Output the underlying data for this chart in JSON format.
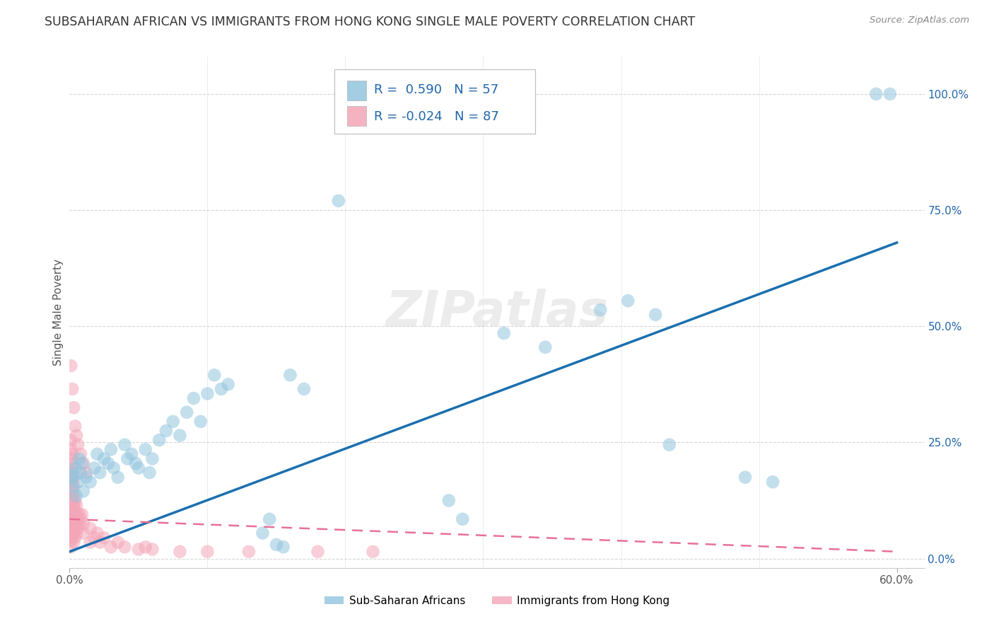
{
  "title": "SUBSAHARAN AFRICAN VS IMMIGRANTS FROM HONG KONG SINGLE MALE POVERTY CORRELATION CHART",
  "source": "Source: ZipAtlas.com",
  "ylabel": "Single Male Poverty",
  "watermark": "ZIPatlas",
  "blue_color": "#92c5de",
  "pink_color": "#f4a6b8",
  "blue_line_color": "#1a6faf",
  "pink_line_color": "#e87099",
  "blue_scatter": [
    [
      0.001,
      0.175
    ],
    [
      0.002,
      0.155
    ],
    [
      0.003,
      0.18
    ],
    [
      0.004,
      0.195
    ],
    [
      0.005,
      0.135
    ],
    [
      0.006,
      0.165
    ],
    [
      0.007,
      0.215
    ],
    [
      0.008,
      0.185
    ],
    [
      0.009,
      0.205
    ],
    [
      0.01,
      0.145
    ],
    [
      0.012,
      0.175
    ],
    [
      0.015,
      0.165
    ],
    [
      0.018,
      0.195
    ],
    [
      0.02,
      0.225
    ],
    [
      0.022,
      0.185
    ],
    [
      0.025,
      0.215
    ],
    [
      0.028,
      0.205
    ],
    [
      0.03,
      0.235
    ],
    [
      0.032,
      0.195
    ],
    [
      0.035,
      0.175
    ],
    [
      0.04,
      0.245
    ],
    [
      0.042,
      0.215
    ],
    [
      0.045,
      0.225
    ],
    [
      0.048,
      0.205
    ],
    [
      0.05,
      0.195
    ],
    [
      0.055,
      0.235
    ],
    [
      0.058,
      0.185
    ],
    [
      0.06,
      0.215
    ],
    [
      0.065,
      0.255
    ],
    [
      0.07,
      0.275
    ],
    [
      0.075,
      0.295
    ],
    [
      0.08,
      0.265
    ],
    [
      0.085,
      0.315
    ],
    [
      0.09,
      0.345
    ],
    [
      0.095,
      0.295
    ],
    [
      0.1,
      0.355
    ],
    [
      0.105,
      0.395
    ],
    [
      0.11,
      0.365
    ],
    [
      0.115,
      0.375
    ],
    [
      0.14,
      0.055
    ],
    [
      0.145,
      0.085
    ],
    [
      0.15,
      0.03
    ],
    [
      0.155,
      0.025
    ],
    [
      0.16,
      0.395
    ],
    [
      0.17,
      0.365
    ],
    [
      0.195,
      0.77
    ],
    [
      0.275,
      0.125
    ],
    [
      0.285,
      0.085
    ],
    [
      0.315,
      0.485
    ],
    [
      0.345,
      0.455
    ],
    [
      0.385,
      0.535
    ],
    [
      0.405,
      0.555
    ],
    [
      0.425,
      0.525
    ],
    [
      0.435,
      0.245
    ],
    [
      0.49,
      0.175
    ],
    [
      0.51,
      0.165
    ],
    [
      0.585,
      1.0
    ],
    [
      0.595,
      1.0
    ]
  ],
  "pink_scatter": [
    [
      0.001,
      0.155
    ],
    [
      0.001,
      0.175
    ],
    [
      0.001,
      0.195
    ],
    [
      0.001,
      0.215
    ],
    [
      0.001,
      0.135
    ],
    [
      0.001,
      0.115
    ],
    [
      0.001,
      0.095
    ],
    [
      0.001,
      0.075
    ],
    [
      0.001,
      0.055
    ],
    [
      0.001,
      0.04
    ],
    [
      0.001,
      0.025
    ],
    [
      0.001,
      0.235
    ],
    [
      0.001,
      0.255
    ],
    [
      0.002,
      0.045
    ],
    [
      0.002,
      0.065
    ],
    [
      0.002,
      0.085
    ],
    [
      0.002,
      0.105
    ],
    [
      0.002,
      0.125
    ],
    [
      0.002,
      0.145
    ],
    [
      0.002,
      0.165
    ],
    [
      0.002,
      0.185
    ],
    [
      0.002,
      0.205
    ],
    [
      0.002,
      0.225
    ],
    [
      0.003,
      0.035
    ],
    [
      0.003,
      0.055
    ],
    [
      0.003,
      0.075
    ],
    [
      0.003,
      0.095
    ],
    [
      0.003,
      0.115
    ],
    [
      0.003,
      0.135
    ],
    [
      0.003,
      0.155
    ],
    [
      0.003,
      0.175
    ],
    [
      0.004,
      0.045
    ],
    [
      0.004,
      0.065
    ],
    [
      0.004,
      0.085
    ],
    [
      0.004,
      0.105
    ],
    [
      0.004,
      0.125
    ],
    [
      0.005,
      0.055
    ],
    [
      0.005,
      0.075
    ],
    [
      0.005,
      0.095
    ],
    [
      0.005,
      0.115
    ],
    [
      0.006,
      0.065
    ],
    [
      0.006,
      0.085
    ],
    [
      0.007,
      0.075
    ],
    [
      0.007,
      0.095
    ],
    [
      0.008,
      0.085
    ],
    [
      0.009,
      0.095
    ],
    [
      0.01,
      0.075
    ],
    [
      0.01,
      0.055
    ],
    [
      0.001,
      0.415
    ],
    [
      0.002,
      0.365
    ],
    [
      0.003,
      0.325
    ],
    [
      0.004,
      0.285
    ],
    [
      0.005,
      0.265
    ],
    [
      0.006,
      0.245
    ],
    [
      0.008,
      0.225
    ],
    [
      0.01,
      0.205
    ],
    [
      0.012,
      0.185
    ],
    [
      0.015,
      0.035
    ],
    [
      0.015,
      0.065
    ],
    [
      0.018,
      0.045
    ],
    [
      0.02,
      0.055
    ],
    [
      0.022,
      0.035
    ],
    [
      0.025,
      0.045
    ],
    [
      0.03,
      0.025
    ],
    [
      0.035,
      0.035
    ],
    [
      0.04,
      0.025
    ],
    [
      0.05,
      0.02
    ],
    [
      0.055,
      0.025
    ],
    [
      0.06,
      0.02
    ],
    [
      0.08,
      0.015
    ],
    [
      0.1,
      0.015
    ],
    [
      0.13,
      0.015
    ],
    [
      0.18,
      0.015
    ],
    [
      0.22,
      0.015
    ]
  ],
  "xlim": [
    0.0,
    0.62
  ],
  "ylim": [
    -0.02,
    1.08
  ],
  "xtick_positions": [
    0.0,
    0.6
  ],
  "xtick_labels": [
    "0.0%",
    "60.0%"
  ],
  "yticks": [
    0.0,
    0.25,
    0.5,
    0.75,
    1.0
  ],
  "ytick_labels_right": [
    "0.0%",
    "25.0%",
    "50.0%",
    "75.0%",
    "100.0%"
  ],
  "blue_trendline": [
    [
      0.0,
      0.015
    ],
    [
      0.6,
      0.68
    ]
  ],
  "pink_trendline": [
    [
      0.0,
      0.085
    ],
    [
      0.6,
      0.015
    ]
  ]
}
